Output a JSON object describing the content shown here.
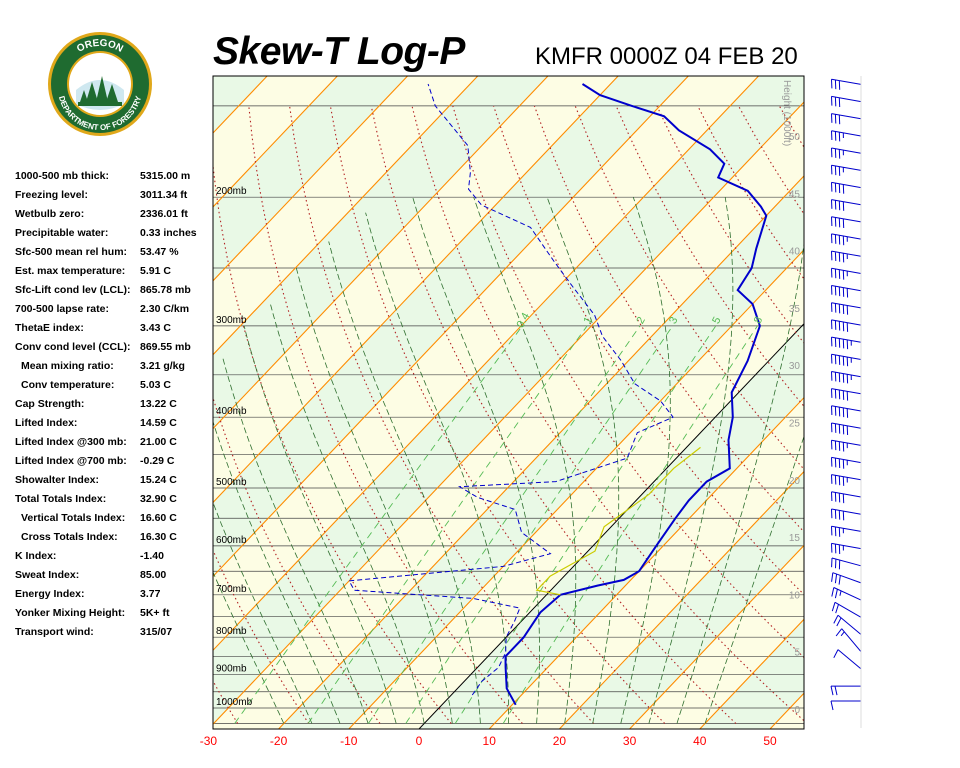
{
  "header": {
    "title": "Skew-T Log-P",
    "subtitle": "KMFR 0000Z 04 FEB 20"
  },
  "logo": {
    "top_text": "OREGON",
    "ring_text": "DEPARTMENT OF FORESTRY",
    "colors": {
      "ring": "#1f6b30",
      "ring_border": "#e0a81a",
      "center": "#ffffff",
      "trees": "#1f6b30"
    }
  },
  "indices": [
    {
      "label": "1000-500 mb thick:",
      "value": "5315.00 m"
    },
    {
      "label": "Freezing level:",
      "value": "3011.34 ft"
    },
    {
      "label": "Wetbulb zero:",
      "value": "2336.01 ft"
    },
    {
      "label": "Precipitable water:",
      "value": "0.33 inches"
    },
    {
      "label": "Sfc-500 mean rel hum:",
      "value": "53.47 %"
    },
    {
      "label": "Est. max temperature:",
      "value": "5.91 C"
    },
    {
      "label": "Sfc-Lift cond lev (LCL):",
      "value": "865.78 mb"
    },
    {
      "label": "700-500 lapse rate:",
      "value": "2.30 C/km"
    },
    {
      "label": "ThetaE index:",
      "value": "3.43 C"
    },
    {
      "label": "Conv cond level (CCL):",
      "value": "869.55 mb"
    },
    {
      "label": "Mean mixing ratio:",
      "value": "3.21 g/kg",
      "indent": true
    },
    {
      "label": "Conv temperature:",
      "value": "5.03 C",
      "indent": true
    },
    {
      "label": "Cap Strength:",
      "value": "13.22 C"
    },
    {
      "label": "Lifted Index:",
      "value": "14.59 C"
    },
    {
      "label": "Lifted Index @300 mb:",
      "value": "21.00 C"
    },
    {
      "label": "Lifted Index @700 mb:",
      "value": "-0.29 C"
    },
    {
      "label": "Showalter Index:",
      "value": "15.24 C"
    },
    {
      "label": "Total Totals Index:",
      "value": "32.90 C"
    },
    {
      "label": "Vertical Totals Index:",
      "value": "16.60 C",
      "indent": true
    },
    {
      "label": "Cross Totals Index:",
      "value": "16.30 C",
      "indent": true
    },
    {
      "label": "K Index:",
      "value": "-1.40"
    },
    {
      "label": "Sweat Index:",
      "value": "85.00"
    },
    {
      "label": "Energy Index:",
      "value": "3.77"
    },
    {
      "label": "Yonker Mixing Height:",
      "value": "5K+ ft"
    },
    {
      "label": "Transport wind:",
      "value": "315/07"
    }
  ],
  "chart_data": {
    "type": "line",
    "x_ticks": [
      "-30",
      "-20",
      "-10",
      "0",
      "10",
      "20",
      "30",
      "40",
      "50"
    ],
    "x_tick_values": [
      -30,
      -20,
      -10,
      0,
      10,
      20,
      30,
      40,
      50
    ],
    "pressure_labels": [
      {
        "p": 1000,
        "label": "1000mb"
      },
      {
        "p": 900,
        "label": "900mb"
      },
      {
        "p": 800,
        "label": "800mb"
      },
      {
        "p": 700,
        "label": "700mb"
      },
      {
        "p": 600,
        "label": "600mb"
      },
      {
        "p": 500,
        "label": "500mb"
      },
      {
        "p": 400,
        "label": "400mb"
      },
      {
        "p": 300,
        "label": "300mb"
      },
      {
        "p": 200,
        "label": "200mb"
      }
    ],
    "height_axis_label": "Height (1000ft)",
    "height_ticks": [
      "0",
      "5",
      "10",
      "15",
      "20",
      "25",
      "30",
      "35",
      "40",
      "45",
      "50"
    ],
    "height_tick_values": [
      0,
      5,
      10,
      15,
      20,
      25,
      30,
      35,
      40,
      45,
      50
    ],
    "mixing_ratio_labels": [
      "0.4",
      "1",
      "2",
      "3",
      "5",
      "8"
    ],
    "mixing_ratio_values": [
      0.4,
      1,
      2,
      3,
      5,
      8
    ],
    "series": [
      {
        "color": "#0000cc",
        "style": "solid",
        "points": [
          [
            10.5,
            990
          ],
          [
            7,
            940
          ],
          [
            4,
            880
          ],
          [
            2.5,
            850
          ],
          [
            2.5,
            800
          ],
          [
            1.5,
            740
          ],
          [
            2,
            700
          ],
          [
            6,
            680
          ],
          [
            9,
            668
          ],
          [
            10,
            650
          ],
          [
            9,
            600
          ],
          [
            8,
            550
          ],
          [
            7.5,
            520
          ],
          [
            7.5,
            490
          ],
          [
            9,
            470
          ],
          [
            5,
            430
          ],
          [
            2.5,
            400
          ],
          [
            -1,
            370
          ],
          [
            -3,
            335
          ],
          [
            -6,
            300
          ],
          [
            -10,
            280
          ],
          [
            -14,
            268
          ],
          [
            -15,
            250
          ],
          [
            -17,
            235
          ],
          [
            -20,
            212
          ],
          [
            -22,
            206
          ],
          [
            -26,
            196
          ],
          [
            -32,
            188
          ],
          [
            -33,
            180
          ],
          [
            -37,
            172
          ],
          [
            -44,
            162
          ],
          [
            -48,
            155
          ],
          [
            -54,
            150
          ],
          [
            -60,
            145
          ],
          [
            -64,
            140
          ]
        ]
      },
      {
        "color": "#0000cc",
        "style": "dashed",
        "points": [
          [
            3,
            960
          ],
          [
            2.5,
            920
          ],
          [
            3,
            880
          ],
          [
            2,
            840
          ],
          [
            0,
            800
          ],
          [
            -1,
            760
          ],
          [
            -2,
            730
          ],
          [
            -10,
            708
          ],
          [
            -20,
            698
          ],
          [
            -28,
            690
          ],
          [
            -30,
            670
          ],
          [
            -10,
            640
          ],
          [
            -5,
            615
          ],
          [
            -12,
            575
          ],
          [
            -16,
            535
          ],
          [
            -23,
            515
          ],
          [
            -27,
            498
          ],
          [
            -14,
            490
          ],
          [
            -7,
            455
          ],
          [
            -9,
            420
          ],
          [
            -6,
            400
          ],
          [
            -10,
            380
          ],
          [
            -16,
            360
          ],
          [
            -21,
            335
          ],
          [
            -27,
            310
          ],
          [
            -31,
            290
          ],
          [
            -38,
            265
          ],
          [
            -44,
            245
          ],
          [
            -52,
            220
          ],
          [
            -62,
            205
          ],
          [
            -66,
            195
          ],
          [
            -68,
            185
          ],
          [
            -72,
            170
          ],
          [
            -82,
            150
          ],
          [
            -86,
            140
          ]
        ]
      },
      {
        "color": "#cccc00",
        "style": "solid",
        "points": [
          [
            2,
            700
          ],
          [
            -2,
            690
          ],
          [
            -2,
            660
          ],
          [
            1,
            610
          ],
          [
            -1,
            565
          ],
          [
            1,
            510
          ],
          [
            1,
            470
          ],
          [
            2,
            440
          ]
        ]
      }
    ],
    "wind_barbs": [
      {
        "h": 0.7,
        "dir": 270,
        "spd": 10
      },
      {
        "h": 2.0,
        "dir": 270,
        "spd": 20
      },
      {
        "h": 3.5,
        "dir": 310,
        "spd": 10
      },
      {
        "h": 5.0,
        "dir": 320,
        "spd": 15
      },
      {
        "h": 6.5,
        "dir": 310,
        "spd": 20
      },
      {
        "h": 8.0,
        "dir": 300,
        "spd": 20
      },
      {
        "h": 9.5,
        "dir": 295,
        "spd": 25
      },
      {
        "h": 11.0,
        "dir": 290,
        "spd": 30
      },
      {
        "h": 12.5,
        "dir": 285,
        "spd": 30
      },
      {
        "h": 14.0,
        "dir": 280,
        "spd": 35
      },
      {
        "h": 15.5,
        "dir": 280,
        "spd": 35
      },
      {
        "h": 17.0,
        "dir": 280,
        "spd": 40
      },
      {
        "h": 18.5,
        "dir": 280,
        "spd": 40
      },
      {
        "h": 20.0,
        "dir": 280,
        "spd": 45
      },
      {
        "h": 21.5,
        "dir": 280,
        "spd": 45
      },
      {
        "h": 23.0,
        "dir": 280,
        "spd": 45
      },
      {
        "h": 24.5,
        "dir": 280,
        "spd": 50
      },
      {
        "h": 26.0,
        "dir": 280,
        "spd": 50
      },
      {
        "h": 27.5,
        "dir": 280,
        "spd": 50
      },
      {
        "h": 29.0,
        "dir": 280,
        "spd": 55
      },
      {
        "h": 30.5,
        "dir": 280,
        "spd": 55
      },
      {
        "h": 32.0,
        "dir": 280,
        "spd": 55
      },
      {
        "h": 33.5,
        "dir": 280,
        "spd": 50
      },
      {
        "h": 35.0,
        "dir": 280,
        "spd": 50
      },
      {
        "h": 36.5,
        "dir": 280,
        "spd": 50
      },
      {
        "h": 38.0,
        "dir": 280,
        "spd": 45
      },
      {
        "h": 39.5,
        "dir": 280,
        "spd": 45
      },
      {
        "h": 41.0,
        "dir": 280,
        "spd": 45
      },
      {
        "h": 42.5,
        "dir": 280,
        "spd": 40
      },
      {
        "h": 44.0,
        "dir": 280,
        "spd": 40
      },
      {
        "h": 45.5,
        "dir": 280,
        "spd": 40
      },
      {
        "h": 47.0,
        "dir": 280,
        "spd": 35
      },
      {
        "h": 48.5,
        "dir": 280,
        "spd": 35
      },
      {
        "h": 50.0,
        "dir": 280,
        "spd": 35
      },
      {
        "h": 51.5,
        "dir": 280,
        "spd": 30
      },
      {
        "h": 53.0,
        "dir": 280,
        "spd": 30
      },
      {
        "h": 54.5,
        "dir": 280,
        "spd": 30
      },
      {
        "h": 56.0,
        "dir": 280,
        "spd": 25
      }
    ],
    "colors": {
      "band_a": "#fdfde4",
      "band_b": "#e9f9e6",
      "isobar": "#444444",
      "isotherm": "#ff8c00",
      "dry_adiabat": "#b22222",
      "moist_adiabat": "#2f6f2f",
      "mixing_ratio": "#55bb55",
      "freezing": "#000000",
      "tick_red": "#ff0000",
      "height_tick": "#999999",
      "wind": "#0000cc"
    }
  }
}
